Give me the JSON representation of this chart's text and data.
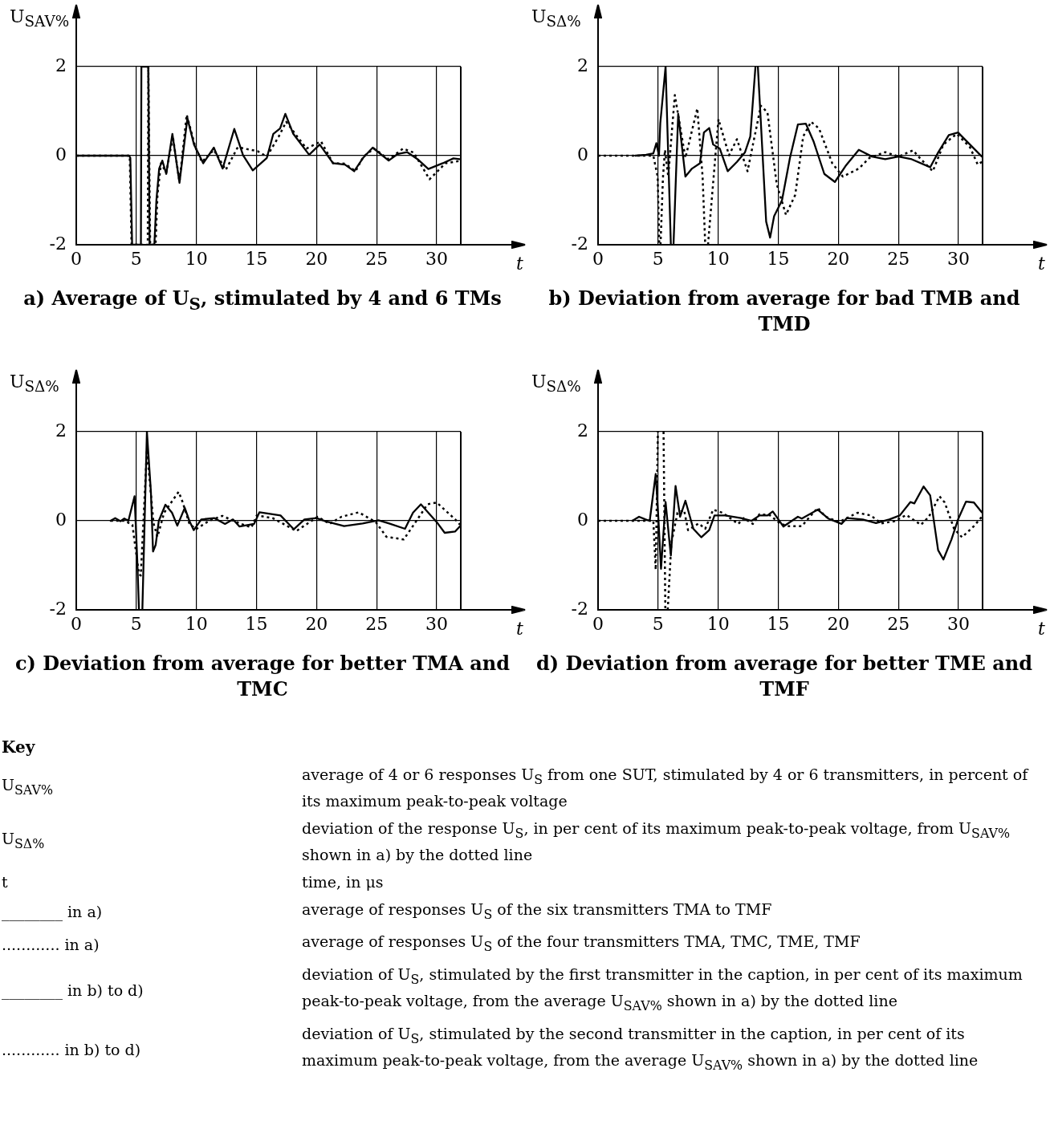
{
  "chart_data": [
    {
      "type": "line",
      "title": "a) Average of U$_{S}$, stimulated by 4 and 6 TMs",
      "xlabel": "t",
      "ylabel": "U$_{SAV%}$",
      "xlim": [
        0,
        32
      ],
      "ylim": [
        -2,
        2
      ],
      "xticks": [
        0,
        5,
        10,
        15,
        20,
        25,
        30
      ],
      "yticks": [
        -2,
        0,
        2
      ],
      "grid": true,
      "series": [
        {
          "color": "#000000",
          "line_style": "solid",
          "x": [
            0,
            4.4,
            4.5,
            4.65,
            5.0,
            5.38,
            5.42,
            5.8,
            6.0,
            6.1,
            6.3,
            6.5,
            6.67,
            6.9,
            7.16,
            7.49,
            8.0,
            8.59,
            9.25,
            9.8,
            10.57,
            11.45,
            12.18,
            13.15,
            13.88,
            14.69,
            15.86,
            16.4,
            16.96,
            17.4,
            18.06,
            19.38,
            20.26,
            21.37,
            22.36,
            23.13,
            23.9,
            24.67,
            26.0,
            26.76,
            27.53,
            28.41,
            29.3,
            30.5,
            31.39,
            31.9
          ],
          "values": [
            0,
            0,
            -0.05,
            -2,
            -2,
            -2,
            2,
            2,
            2,
            -2,
            -2,
            -2,
            -1.0,
            -0.29,
            -0.11,
            -0.41,
            0.49,
            -0.61,
            0.84,
            0.25,
            -0.17,
            0.18,
            -0.29,
            0.6,
            0.01,
            -0.33,
            -0.05,
            0.49,
            0.61,
            0.94,
            0.49,
            0.02,
            0.25,
            -0.17,
            -0.2,
            -0.35,
            -0.04,
            0.18,
            -0.11,
            0.04,
            0.08,
            -0.08,
            -0.3,
            -0.17,
            -0.06,
            -0.08
          ]
        },
        {
          "color": "#000000",
          "line_style": "dotted",
          "x": [
            0,
            4.45,
            4.6,
            5.95,
            6.0,
            6.15,
            6.3,
            6.6,
            6.76,
            7.05,
            7.49,
            8.04,
            8.59,
            9.19,
            9.91,
            10.46,
            11.45,
            12.44,
            13.44,
            15.09,
            15.86,
            16.85,
            17.47,
            18.39,
            19.16,
            20.37,
            21.37,
            22.36,
            23.24,
            23.9,
            24.78,
            26.0,
            27.2,
            28.08,
            29.4,
            30.73,
            31.9
          ],
          "values": [
            0,
            0,
            -2,
            -2,
            2,
            -2,
            -2,
            -2,
            -0.88,
            -0.17,
            -0.38,
            0.43,
            -0.59,
            0.92,
            0.19,
            -0.14,
            0.13,
            -0.32,
            0.19,
            0.1,
            -0.02,
            0.43,
            0.76,
            0.43,
            0.16,
            0.32,
            -0.17,
            -0.18,
            -0.35,
            -0.02,
            0.16,
            -0.08,
            0.16,
            0.07,
            -0.53,
            -0.17,
            -0.12
          ]
        }
      ]
    },
    {
      "type": "line",
      "title": "b) Deviation from average for bad TMB and TMD",
      "xlabel": "t",
      "ylabel": "U$_{SΔ%}$",
      "xlim": [
        0,
        32
      ],
      "ylim": [
        -2,
        2
      ],
      "xticks": [
        0,
        5,
        10,
        15,
        20,
        25,
        30
      ],
      "yticks": [
        -2,
        0,
        2
      ],
      "grid": true,
      "series": [
        {
          "color": "#000000",
          "line_style": "solid",
          "x": [
            3.1,
            4.0,
            4.6,
            4.85,
            5.07,
            5.18,
            5.62,
            6.06,
            6.15,
            6.28,
            6.67,
            7.27,
            7.82,
            8.48,
            8.81,
            9.25,
            9.58,
            10.13,
            10.79,
            11.56,
            12.22,
            12.67,
            13.1,
            13.2,
            13.3,
            13.99,
            14.32,
            14.65,
            15.31,
            15.97,
            16.63,
            17.29,
            17.95,
            18.83,
            19.71,
            20.6,
            21.7,
            22.8,
            23.9,
            25.0,
            26.1,
            27.64,
            28.3,
            29.19,
            29.96,
            30.95,
            31.94
          ],
          "values": [
            0,
            0.02,
            0.05,
            0.28,
            0,
            0.73,
            2,
            -2,
            null,
            -2,
            0.94,
            -0.47,
            -0.29,
            -0.17,
            0.52,
            0.62,
            0.25,
            0.16,
            -0.35,
            -0.14,
            0.07,
            0.43,
            2,
            null,
            2,
            -1.48,
            -1.84,
            -1.36,
            -1.0,
            -0.05,
            0.7,
            0.72,
            0.31,
            -0.41,
            -0.59,
            -0.23,
            0.13,
            -0.02,
            -0.08,
            -0.02,
            -0.08,
            -0.26,
            0.07,
            0.46,
            0.52,
            0.25,
            -0.02
          ]
        },
        {
          "color": "#000000",
          "line_style": "dotted",
          "x": [
            0,
            4.6,
            4.96,
            5.1,
            5.15,
            5.2,
            5.4,
            5.57,
            5.84,
            6.39,
            7.27,
            8.26,
            8.7,
            8.92,
            9.0,
            9.15,
            10.02,
            10.9,
            11.56,
            12.44,
            12.89,
            13.55,
            14.1,
            14.87,
            15.64,
            16.41,
            17.07,
            17.73,
            18.39,
            19.49,
            20.37,
            21.7,
            22.58,
            23.9,
            25.0,
            26.21,
            26.87,
            27.86,
            28.74,
            29.85,
            30.95,
            31.6,
            31.94
          ],
          "values": [
            0,
            0,
            -0.47,
            -2,
            null,
            -2,
            -0.5,
            0.13,
            -0.47,
            1.36,
            -0.05,
            1.06,
            -0.47,
            -2,
            null,
            -2,
            0.82,
            0.01,
            0.37,
            -0.35,
            0.25,
            1.12,
            0.97,
            -0.64,
            -1.33,
            -0.88,
            0.43,
            0.76,
            0.61,
            -0.17,
            -0.47,
            -0.29,
            -0.05,
            0.08,
            -0.02,
            0.12,
            -0.08,
            -0.35,
            0.25,
            0.49,
            0.19,
            -0.2,
            -0.14
          ]
        }
      ]
    },
    {
      "type": "line",
      "title": "c) Deviation from average for better TMA and TMC",
      "xlabel": "t",
      "ylabel": "U$_{SΔ%}$",
      "xlim": [
        0,
        32
      ],
      "ylim": [
        -2,
        2
      ],
      "xticks": [
        0,
        5,
        10,
        15,
        20,
        25,
        30
      ],
      "yticks": [
        -2,
        0,
        2
      ],
      "grid": true,
      "series": [
        {
          "color": "#000000",
          "line_style": "solid",
          "x": [
            2.86,
            3.24,
            3.68,
            4.0,
            4.34,
            4.85,
            5.07,
            5.22,
            5.35,
            5.5,
            5.88,
            6.21,
            6.39,
            6.61,
            6.87,
            7.42,
            7.97,
            8.41,
            9.03,
            9.41,
            9.78,
            10.4,
            11.5,
            12.38,
            13.04,
            13.59,
            14.8,
            15.24,
            17.0,
            18.1,
            18.99,
            19.98,
            20.75,
            22.29,
            23.83,
            25.15,
            26.04,
            27.36,
            28.02,
            28.68,
            30.0,
            30.66,
            31.54,
            31.94
          ],
          "values": [
            0,
            0.06,
            -0.01,
            0.05,
            0,
            0.55,
            -0.84,
            -2,
            null,
            -2,
            2,
            0.66,
            -0.69,
            -0.54,
            0,
            0.36,
            0.18,
            -0.11,
            0.29,
            0,
            -0.21,
            0.03,
            0.06,
            -0.07,
            0.03,
            -0.13,
            -0.07,
            0.19,
            0.12,
            -0.19,
            0.03,
            0.06,
            -0.01,
            -0.12,
            -0.06,
            0.01,
            -0.06,
            -0.18,
            0.18,
            0.37,
            -0.03,
            -0.27,
            -0.24,
            -0.12
          ]
        },
        {
          "color": "#000000",
          "line_style": "dotted",
          "x": [
            2.86,
            4.0,
            4.67,
            5.22,
            5.37,
            5.88,
            6.43,
            6.76,
            7.31,
            8.52,
            8.85,
            9.41,
            9.96,
            11.06,
            12.16,
            12.82,
            13.7,
            14.58,
            15.02,
            16.34,
            18.32,
            20.09,
            21.08,
            22.07,
            23.5,
            24.93,
            25.81,
            27.25,
            28.24,
            29.23,
            30.0,
            31.54,
            31.94
          ],
          "values": [
            0,
            0,
            -0.09,
            -1.2,
            -1.23,
            1.6,
            -0.06,
            -0.36,
            0.18,
            0.65,
            0.42,
            -0.06,
            -0.19,
            0,
            0.11,
            0.03,
            -0.07,
            -0.15,
            0.12,
            0.06,
            -0.23,
            0.09,
            -0.07,
            0.09,
            0.19,
            -0.03,
            -0.36,
            -0.42,
            -0.03,
            0.37,
            0.41,
            0.03,
            -0.09
          ]
        }
      ]
    },
    {
      "type": "line",
      "title": "d) Deviation from average for better TME and TMF",
      "xlabel": "t",
      "ylabel": "U$_{SΔ%}$",
      "xlim": [
        0,
        32
      ],
      "ylim": [
        -2,
        2
      ],
      "xticks": [
        0,
        5,
        10,
        15,
        20,
        25,
        30
      ],
      "yticks": [
        -2,
        0,
        2
      ],
      "grid": true,
      "series": [
        {
          "color": "#000000",
          "line_style": "solid",
          "x": [
            2.86,
            3.41,
            3.96,
            4.3,
            4.8,
            5.02,
            5.24,
            5.62,
            5.9,
            6.06,
            6.45,
            6.83,
            7.27,
            7.93,
            8.59,
            9.25,
            9.69,
            10.57,
            11.89,
            12.78,
            13.44,
            14.1,
            14.54,
            15.42,
            16.63,
            16.96,
            18.28,
            19.16,
            20.26,
            20.7,
            22.03,
            23.13,
            24.23,
            25.11,
            25.99,
            26.32,
            27.09,
            27.64,
            28.3,
            28.74,
            29.41,
            29.96,
            30.62,
            31.28,
            31.94
          ],
          "values": [
            0,
            0.09,
            0.03,
            0,
            1.05,
            0.06,
            -1.08,
            0.42,
            -0.36,
            -0.78,
            0.78,
            0.09,
            0.45,
            -0.18,
            -0.37,
            -0.21,
            0.12,
            0.12,
            0.06,
            0,
            0.12,
            0.12,
            0.21,
            -0.13,
            0.09,
            0.05,
            0.25,
            0.05,
            -0.07,
            0.06,
            0.03,
            -0.05,
            0.03,
            0.12,
            0.42,
            0.39,
            0.77,
            0.57,
            -0.66,
            -0.87,
            -0.42,
            0.03,
            0.43,
            0.41,
            0.19
          ]
        },
        {
          "color": "#000000",
          "line_style": "dotted",
          "x": [
            0,
            4.6,
            4.8,
            4.98,
            5.2,
            5.45,
            5.6,
            5.7,
            5.8,
            6.1,
            6.61,
            7.16,
            7.49,
            8.37,
            8.92,
            9.58,
            10.35,
            11.67,
            12.11,
            12.89,
            13.44,
            14.32,
            15.2,
            15.86,
            16.96,
            17.62,
            18.28,
            18.94,
            20.04,
            21.59,
            22.69,
            23.57,
            24.67,
            25.66,
            26.87,
            27.53,
            28.41,
            28.85,
            29.63,
            30.29,
            31.28,
            31.94
          ],
          "values": [
            0,
            0,
            -1.1,
            2,
            null,
            2,
            -2,
            null,
            -2,
            -0.5,
            0.18,
            0.24,
            -0.21,
            -0.06,
            -0.18,
            0.25,
            0.18,
            -0.07,
            0.06,
            -0.07,
            0.15,
            0.12,
            -0.07,
            -0.12,
            -0.12,
            0.09,
            0.29,
            0.09,
            -0.03,
            0.18,
            0.12,
            -0.06,
            -0.01,
            0.13,
            -0.09,
            0.09,
            0.55,
            0.41,
            -0.18,
            -0.37,
            -0.12,
            0.09
          ]
        }
      ]
    },
    {
      "type": "other",
      "title": "Key",
      "annotations": [
        "U$_{SAV%}$",
        "average of 4 or 6 responses U$_{S}$ from one SUT, stimulated by 4 or 6 transmitters, in percent of its maximum peak-to-peak voltage",
        "U$_{SΔ%}$",
        "deviation of the response U$_{S}$, in per cent of its maximum peak-to-peak voltage, from U$_{SAV%}$ shown in a) by the dotted line",
        "t",
        "time, in μs",
        "________ in a)",
        "average of responses U$_{S}$ of the six transmitters TMA to TMF",
        "............ in a)",
        "average of responses U$_{S}$ of the four transmitters TMA, TMC, TME, TMF",
        "________ in b) to d)",
        "deviation of U$_{S}$, stimulated by the first transmitter in the caption, in per cent of its maximum peak-to-peak voltage, from the average U$_{SAV%}$ shown in a) by the dotted line",
        "............ in b) to d)",
        "deviation of U$_{S}$, stimulated by the second transmitter in the caption, in per cent of its maximum peak-to-peak voltage, from the average U$_{SAV%}$ shown in a) by the dotted line"
      ]
    }
  ]
}
